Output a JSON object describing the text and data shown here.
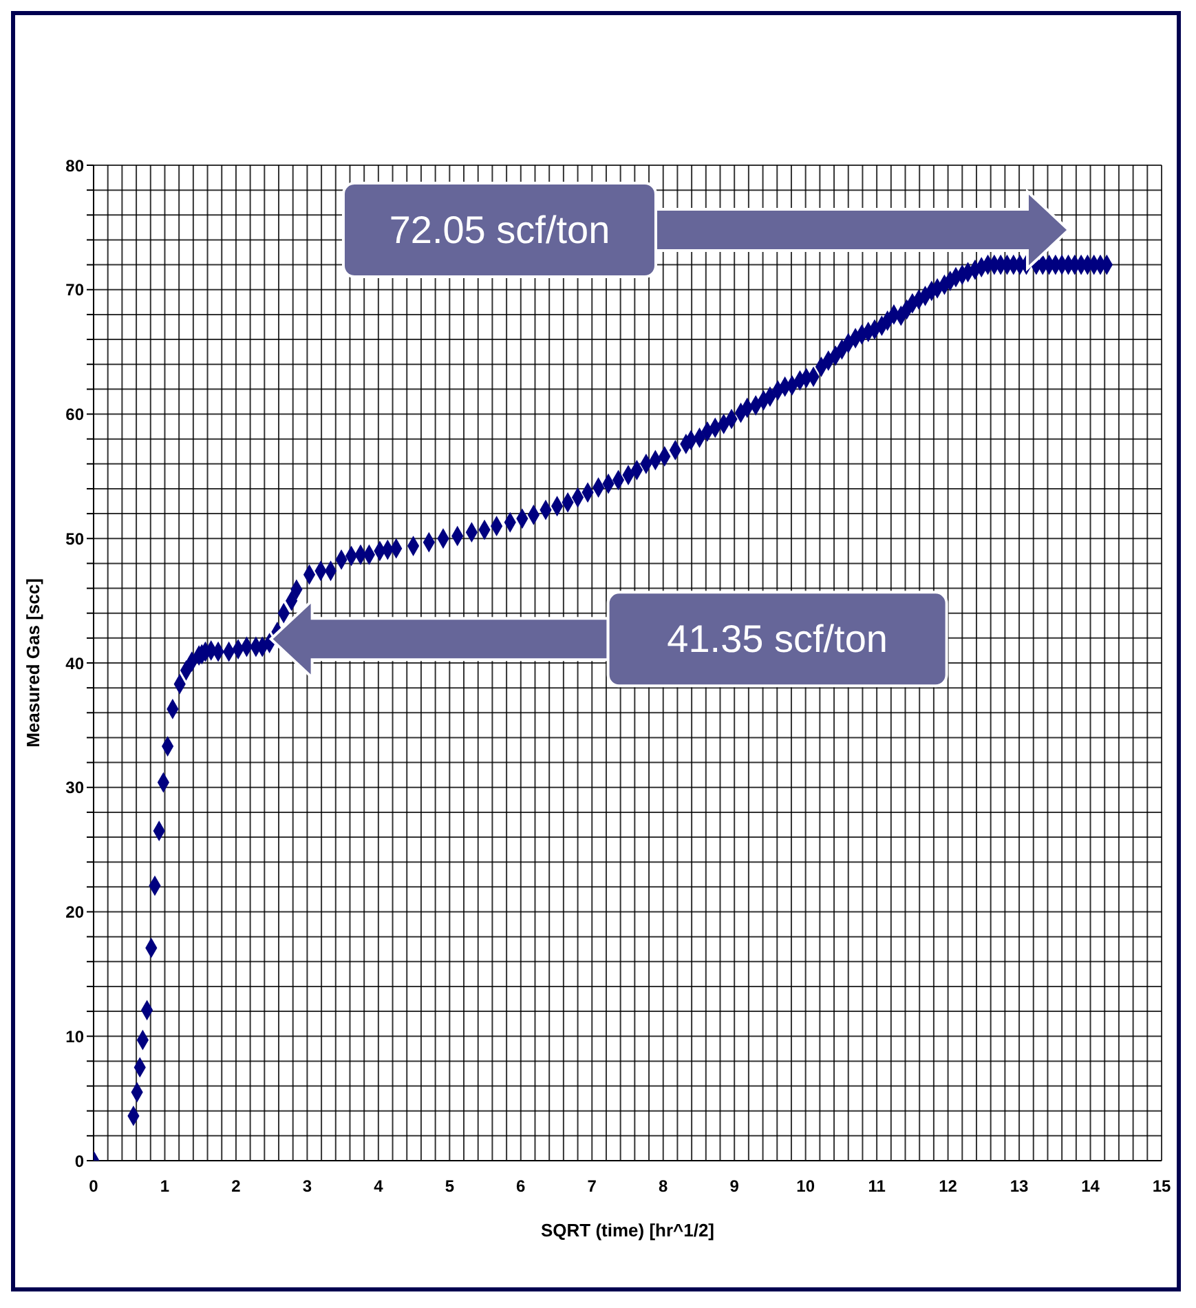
{
  "chart_data": {
    "type": "scatter",
    "xlabel": "SQRT (time) [hr^1/2]",
    "ylabel": "Measured Gas [scc]",
    "annotations": [
      "72.05 scf/ton",
      "41.35 scf/ton"
    ],
    "x": [
      0,
      0.56,
      0.61,
      0.65,
      0.69,
      0.75,
      0.81,
      0.86,
      0.92,
      0.98,
      1.04,
      1.11,
      1.21,
      1.3,
      1.38,
      1.48,
      1.52,
      1.57,
      1.65,
      1.75,
      1.9,
      2.03,
      2.15,
      2.28,
      2.37,
      2.47,
      2.58,
      2.67,
      2.78,
      2.85,
      3.03,
      3.19,
      3.33,
      3.48,
      3.62,
      3.75,
      3.87,
      4.02,
      4.13,
      4.25,
      4.49,
      4.71,
      4.91,
      5.11,
      5.31,
      5.49,
      5.66,
      5.85,
      6.02,
      6.18,
      6.35,
      6.51,
      6.66,
      6.8,
      6.94,
      7.09,
      7.23,
      7.37,
      7.51,
      7.63,
      7.76,
      7.89,
      8.02,
      8.17,
      8.32,
      8.39,
      8.51,
      8.62,
      8.73,
      8.85,
      8.96,
      9.09,
      9.18,
      9.3,
      9.41,
      9.5,
      9.61,
      9.71,
      9.81,
      9.92,
      10.01,
      10.11,
      10.22,
      10.32,
      10.42,
      10.51,
      10.6,
      10.7,
      10.79,
      10.88,
      10.97,
      11.07,
      11.15,
      11.24,
      11.34,
      11.42,
      11.5,
      11.59,
      11.68,
      11.77,
      11.85,
      11.95,
      12.03,
      12.11,
      12.2,
      12.28,
      12.38,
      12.47,
      12.56,
      12.65,
      12.74,
      12.83,
      12.92,
      13.01,
      13.1,
      13.24,
      13.33,
      13.42,
      13.51,
      13.6,
      13.69,
      13.78,
      13.87,
      13.96,
      14.05,
      14.14,
      14.23
    ],
    "values": [
      0,
      3.6,
      5.5,
      7.5,
      9.7,
      12.1,
      17.1,
      22.1,
      26.5,
      30.4,
      33.3,
      36.3,
      38.3,
      39.4,
      40.1,
      40.6,
      40.7,
      40.9,
      41.0,
      40.9,
      40.9,
      41.1,
      41.3,
      41.3,
      41.3,
      41.6,
      42.5,
      44.0,
      45.0,
      45.9,
      47.1,
      47.4,
      47.4,
      48.3,
      48.6,
      48.7,
      48.7,
      49.0,
      49.1,
      49.2,
      49.4,
      49.7,
      50.0,
      50.2,
      50.5,
      50.7,
      51.0,
      51.3,
      51.6,
      51.9,
      52.3,
      52.6,
      52.9,
      53.3,
      53.7,
      54.1,
      54.4,
      54.7,
      55.1,
      55.5,
      56.0,
      56.3,
      56.6,
      57.1,
      57.6,
      57.9,
      58.1,
      58.6,
      58.9,
      59.2,
      59.6,
      60.1,
      60.5,
      60.7,
      61.1,
      61.4,
      61.9,
      62.2,
      62.3,
      62.7,
      62.9,
      63.0,
      63.8,
      64.3,
      64.7,
      65.2,
      65.7,
      66.1,
      66.4,
      66.6,
      66.8,
      67.1,
      67.5,
      68.0,
      67.9,
      68.4,
      68.9,
      69.2,
      69.5,
      69.9,
      70.1,
      70.4,
      70.7,
      71.0,
      71.2,
      71.4,
      71.6,
      71.8,
      72.0,
      72.0,
      72.0,
      72.0,
      72.0,
      72.0,
      72.0,
      72.0,
      72.0,
      72.0,
      72.0,
      72.0,
      72.0,
      72.0,
      72.0,
      72.0,
      72.0,
      72.0,
      72.0
    ],
    "color": "#000080",
    "marker": "diamond",
    "grid": true,
    "xlim": [
      0,
      15
    ],
    "xticks": [
      0,
      {
        "value": 0.2,
        "label": null
      },
      {
        "value": 0.4,
        "label": null
      },
      {
        "value": 0.6,
        "label": null
      },
      {
        "value": 0.8,
        "label": null
      },
      1,
      {
        "value": 1.2,
        "label": null
      },
      {
        "value": 1.4,
        "label": null
      },
      {
        "value": 1.6,
        "label": null
      },
      {
        "value": 1.8,
        "label": null
      },
      2,
      {
        "value": 2.2,
        "label": null
      },
      {
        "value": 2.4,
        "label": null
      },
      {
        "value": 2.6,
        "label": null
      },
      {
        "value": 2.8,
        "label": null
      },
      3,
      {
        "value": 3.2,
        "label": null
      },
      {
        "value": 3.4,
        "label": null
      },
      {
        "value": 3.6,
        "label": null
      },
      {
        "value": 3.8,
        "label": null
      },
      4,
      {
        "value": 4.2,
        "label": null
      },
      {
        "value": 4.4,
        "label": null
      },
      {
        "value": 4.6,
        "label": null
      },
      {
        "value": 4.8,
        "label": null
      },
      5,
      {
        "value": 5.2,
        "label": null
      },
      {
        "value": 5.4,
        "label": null
      },
      {
        "value": 5.6,
        "label": null
      },
      {
        "value": 5.8,
        "label": null
      },
      6,
      {
        "value": 6.2,
        "label": null
      },
      {
        "value": 6.4,
        "label": null
      },
      {
        "value": 6.6,
        "label": null
      },
      {
        "value": 6.8,
        "label": null
      },
      7,
      {
        "value": 7.2,
        "label": null
      },
      {
        "value": 7.4,
        "label": null
      },
      {
        "value": 7.6,
        "label": null
      },
      {
        "value": 7.8,
        "label": null
      },
      8,
      {
        "value": 8.2,
        "label": null
      },
      {
        "value": 8.4,
        "label": null
      },
      {
        "value": 8.6,
        "label": null
      },
      {
        "value": 8.8,
        "label": null
      },
      9,
      {
        "value": 9.2,
        "label": null
      },
      {
        "value": 9.4,
        "label": null
      },
      {
        "value": 9.6,
        "label": null
      },
      {
        "value": 9.8,
        "label": null
      },
      10,
      {
        "value": 10.2,
        "label": null
      },
      {
        "value": 10.4,
        "label": null
      },
      {
        "value": 10.6,
        "label": null
      },
      {
        "value": 10.8,
        "label": null
      },
      11,
      {
        "value": 11.2,
        "label": null
      },
      {
        "value": 11.4,
        "label": null
      },
      {
        "value": 11.6,
        "label": null
      },
      {
        "value": 11.8,
        "label": null
      },
      12,
      {
        "value": 12.2,
        "label": null
      },
      {
        "value": 12.4,
        "label": null
      },
      {
        "value": 12.6,
        "label": null
      },
      {
        "value": 12.8,
        "label": null
      },
      13,
      {
        "value": 13.2,
        "label": null
      },
      {
        "value": 13.4,
        "label": null
      },
      {
        "value": 13.6,
        "label": null
      },
      {
        "value": 13.8,
        "label": null
      },
      14,
      {
        "value": 14.2,
        "label": null
      },
      {
        "value": 14.4,
        "label": null
      },
      {
        "value": 14.6,
        "label": null
      },
      {
        "value": 14.8,
        "label": null
      },
      15
    ],
    "ylim": [
      0,
      80
    ],
    "yticks": [
      0,
      {
        "value": 2,
        "label": null
      },
      {
        "value": 4,
        "label": null
      },
      {
        "value": 6,
        "label": null
      },
      {
        "value": 8,
        "label": null
      },
      10,
      {
        "value": 12,
        "label": null
      },
      {
        "value": 14,
        "label": null
      },
      {
        "value": 16,
        "label": null
      },
      {
        "value": 18,
        "label": null
      },
      20,
      {
        "value": 22,
        "label": null
      },
      {
        "value": 24,
        "label": null
      },
      {
        "value": 26,
        "label": null
      },
      {
        "value": 28,
        "label": null
      },
      30,
      {
        "value": 32,
        "label": null
      },
      {
        "value": 34,
        "label": null
      },
      {
        "value": 36,
        "label": null
      },
      {
        "value": 38,
        "label": null
      },
      40,
      {
        "value": 42,
        "label": null
      },
      {
        "value": 44,
        "label": null
      },
      {
        "value": 46,
        "label": null
      },
      {
        "value": 48,
        "label": null
      },
      50,
      {
        "value": 52,
        "label": null
      },
      {
        "value": 54,
        "label": null
      },
      {
        "value": 56,
        "label": null
      },
      {
        "value": 58,
        "label": null
      },
      60,
      {
        "value": 62,
        "label": null
      },
      {
        "value": 64,
        "label": null
      },
      {
        "value": 66,
        "label": null
      },
      {
        "value": 68,
        "label": null
      },
      70,
      {
        "value": 72,
        "label": null
      },
      {
        "value": 74,
        "label": null
      },
      {
        "value": 76,
        "label": null
      },
      {
        "value": 78,
        "label": null
      },
      80
    ]
  }
}
